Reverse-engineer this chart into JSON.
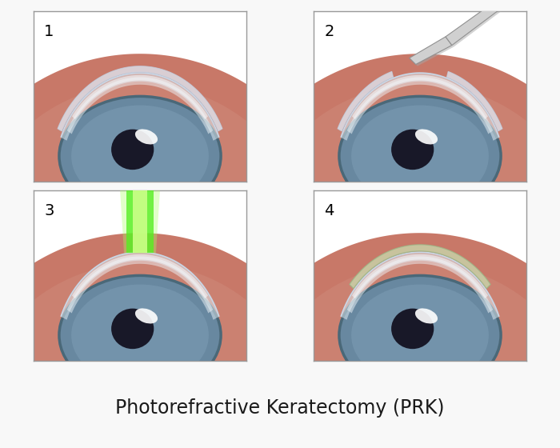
{
  "title": "Photorefractive Keratectomy (PRK)",
  "title_fontsize": 17,
  "background_color": "#f8f8f8",
  "border_color": "#aaaaaa",
  "number_fontsize": 14,
  "sclera_color_outer": "#b06055",
  "sclera_color_inner": "#c87868",
  "sclera_color_top": "#d09080",
  "cornea_outer_color": "#dce8f0",
  "cornea_inner_color": "#eef4f8",
  "cornea_white_top": "#f5f9fc",
  "cornea_edge_color": "#c8d8e8",
  "iris_outer": "#6888a0",
  "iris_inner": "#7898b0",
  "iris_dark": "#4a6878",
  "pupil_color": "#181828",
  "highlight_color": "#e8f0f8",
  "epithelium_color": "#ddeeff",
  "epithelium_alpha": 0.6,
  "laser_color1": "#55ee22",
  "laser_color2": "#aaff66",
  "bandage_color": "#c8ddb0",
  "bandage_edge": "#99bb88",
  "tool_color": "#d0d0d0",
  "tool_shadow": "#a8a8a8",
  "tool_edge": "#909090"
}
